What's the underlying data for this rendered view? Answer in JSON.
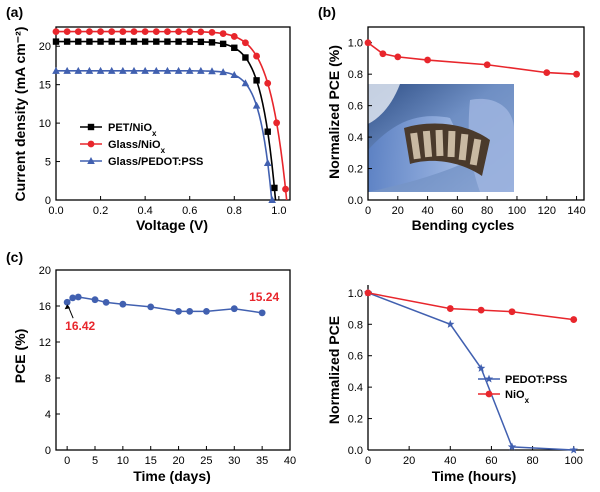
{
  "panel_labels": [
    "(a)",
    "(b)",
    "(c)"
  ],
  "colors": {
    "black": "#000000",
    "red": "#e8262c",
    "blue": "#4160b0"
  },
  "chart_data": [
    {
      "id": "jv",
      "type": "line",
      "panel": "(a)",
      "xlabel": "Voltage (V)",
      "ylabel": "Current density (mA cm⁻²)",
      "xlim": [
        0,
        1.05
      ],
      "ylim": [
        0,
        22.5
      ],
      "xticks": [
        "0.0",
        "0.2",
        "0.4",
        "0.6",
        "0.8",
        "1.0"
      ],
      "yticks": [
        "0",
        "5",
        "10",
        "15",
        "20"
      ],
      "legend_position": "lower-left",
      "series": [
        {
          "name": "PET/NiOx",
          "color": "#000000",
          "marker": "square",
          "jsc": 20.6,
          "voc": 0.985,
          "n": 2.6,
          "x": [
            0,
            0.05,
            0.1,
            0.15,
            0.2,
            0.25,
            0.3,
            0.35,
            0.4,
            0.45,
            0.5,
            0.55,
            0.6,
            0.65,
            0.7,
            0.75,
            0.8,
            0.85,
            0.9,
            0.95,
            0.98
          ]
        },
        {
          "name": "Glass/NiOx",
          "color": "#e8262c",
          "marker": "circle",
          "jsc": 21.9,
          "voc": 1.035,
          "n": 2.3,
          "x": [
            0,
            0.05,
            0.1,
            0.15,
            0.2,
            0.25,
            0.3,
            0.35,
            0.4,
            0.45,
            0.5,
            0.55,
            0.6,
            0.65,
            0.7,
            0.75,
            0.8,
            0.85,
            0.9,
            0.95,
            0.99,
            1.03
          ]
        },
        {
          "name": "Glass/PEDOT:PSS",
          "color": "#4160b0",
          "marker": "triangle",
          "jsc": 16.8,
          "voc": 0.968,
          "n": 3.0,
          "x": [
            0,
            0.05,
            0.1,
            0.15,
            0.2,
            0.25,
            0.3,
            0.35,
            0.4,
            0.45,
            0.5,
            0.55,
            0.6,
            0.65,
            0.7,
            0.75,
            0.8,
            0.85,
            0.9,
            0.95,
            0.97
          ]
        }
      ]
    },
    {
      "id": "bend",
      "type": "line",
      "panel": "(b)",
      "xlabel": "Bending cycles",
      "ylabel": "Normalized PCE (%)",
      "xlim": [
        0,
        145
      ],
      "ylim": [
        0,
        1.1
      ],
      "xticks": [
        "0",
        "20",
        "40",
        "60",
        "80",
        "100",
        "120",
        "140"
      ],
      "yticks": [
        "0.0",
        "0.2",
        "0.4",
        "0.6",
        "0.8",
        "1.0"
      ],
      "photo_inset": true,
      "series": [
        {
          "color": "#e8262c",
          "marker": "circle",
          "x": [
            0,
            10,
            20,
            40,
            80,
            120,
            140
          ],
          "y": [
            1.0,
            0.93,
            0.91,
            0.89,
            0.86,
            0.81,
            0.8
          ]
        }
      ]
    },
    {
      "id": "pce_days",
      "type": "line",
      "panel": "(c)",
      "xlabel": "Time (days)",
      "ylabel": "PCE (%)",
      "xlim": [
        -2,
        40
      ],
      "ylim": [
        0,
        20
      ],
      "xticks": [
        "0",
        "5",
        "10",
        "15",
        "20",
        "25",
        "30",
        "35",
        "40"
      ],
      "yticks": [
        "0",
        "4",
        "8",
        "12",
        "16",
        "20"
      ],
      "annotations": [
        "16.42",
        "15.24"
      ],
      "series": [
        {
          "color": "#4160b0",
          "marker": "circle",
          "x": [
            0,
            1,
            2,
            5,
            7,
            10,
            15,
            20,
            22,
            25,
            30,
            35
          ],
          "y": [
            16.42,
            16.9,
            17.0,
            16.7,
            16.4,
            16.2,
            15.9,
            15.4,
            15.4,
            15.4,
            15.7,
            15.24
          ]
        }
      ]
    },
    {
      "id": "stability",
      "type": "line",
      "xlabel": "Time (hours)",
      "ylabel": "Normalized PCE",
      "xlim": [
        0,
        105
      ],
      "ylim": [
        0,
        1.05
      ],
      "xticks": [
        "0",
        "20",
        "40",
        "60",
        "80",
        "100"
      ],
      "yticks": [
        "0.0",
        "0.2",
        "0.4",
        "0.6",
        "0.8",
        "1.0"
      ],
      "legend_position": "lower-right",
      "series": [
        {
          "name": "PEDOT:PSS",
          "color": "#4160b0",
          "marker": "star",
          "x": [
            0,
            40,
            55,
            70,
            100
          ],
          "y": [
            1.0,
            0.8,
            0.52,
            0.02,
            0.0
          ]
        },
        {
          "name": "NiOx",
          "color": "#e8262c",
          "marker": "circle",
          "x": [
            0,
            40,
            55,
            70,
            100
          ],
          "y": [
            1.0,
            0.9,
            0.89,
            0.88,
            0.83
          ]
        }
      ]
    }
  ]
}
